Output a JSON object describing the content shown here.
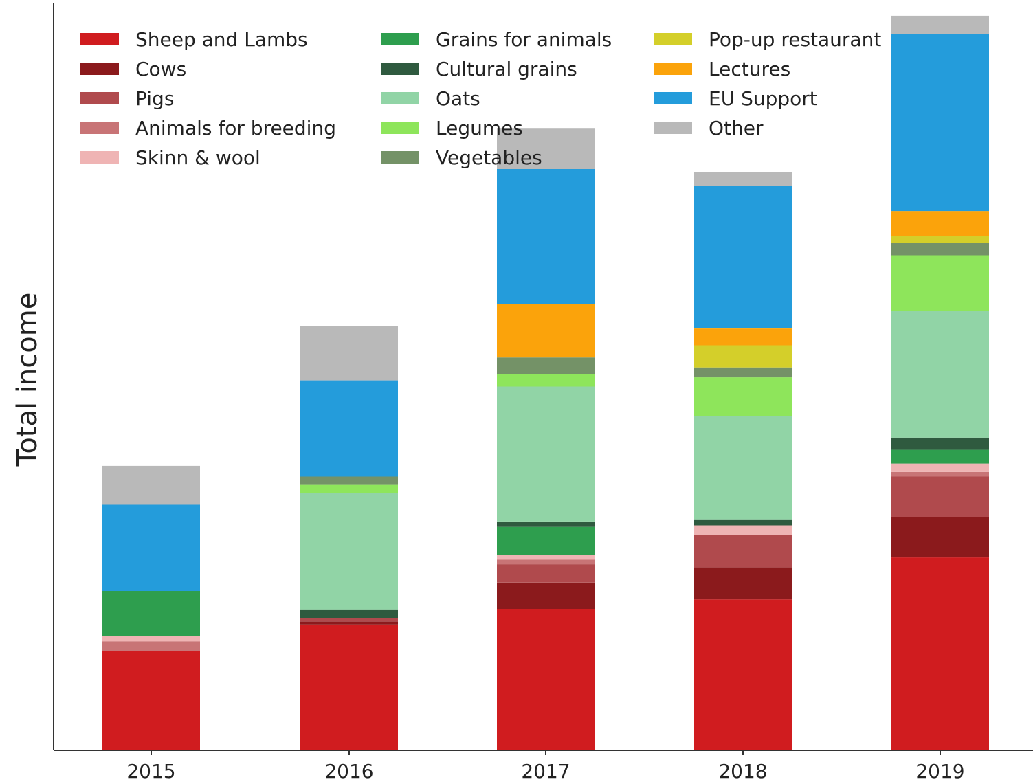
{
  "chart_data": {
    "type": "bar",
    "stacked": true,
    "title": "",
    "xlabel": "",
    "ylabel": "Total income",
    "y_ticks_shown": false,
    "grid": false,
    "legend_placement": "top-left",
    "categories": [
      "2015",
      "2016",
      "2017",
      "2018",
      "2019"
    ],
    "series": [
      {
        "name": "Sheep and Lambs",
        "color": "#d01c1f",
        "values": [
          130,
          165,
          185,
          198,
          253
        ]
      },
      {
        "name": "Cows",
        "color": "#8b1a1c",
        "values": [
          0,
          4,
          35,
          42,
          53
        ]
      },
      {
        "name": "Pigs",
        "color": "#b04a4d",
        "values": [
          0,
          4,
          24,
          42,
          53
        ]
      },
      {
        "name": "Animals for breeding",
        "color": "#c87476",
        "values": [
          13,
          0,
          6,
          0,
          6
        ]
      },
      {
        "name": "Skinn & wool",
        "color": "#efb4b4",
        "values": [
          7,
          0,
          6,
          13,
          11
        ]
      },
      {
        "name": "Grains for animals",
        "color": "#2e9e4e",
        "values": [
          59,
          0,
          37,
          0,
          18
        ]
      },
      {
        "name": "Cultural grains",
        "color": "#2f5a3f",
        "values": [
          0,
          11,
          7,
          7,
          16
        ]
      },
      {
        "name": "Oats",
        "color": "#91d4a6",
        "values": [
          0,
          153,
          177,
          136,
          166
        ]
      },
      {
        "name": "Legumes",
        "color": "#8ee55b",
        "values": [
          0,
          11,
          16,
          51,
          73
        ]
      },
      {
        "name": "Vegetables",
        "color": "#749267",
        "values": [
          0,
          11,
          22,
          13,
          16
        ]
      },
      {
        "name": "Pop-up restaurant",
        "color": "#d4cf2a",
        "values": [
          0,
          0,
          0,
          29,
          9
        ]
      },
      {
        "name": "Lectures",
        "color": "#fba30b",
        "values": [
          0,
          0,
          70,
          22,
          33
        ]
      },
      {
        "name": "EU Support",
        "color": "#249cdb",
        "values": [
          113,
          126,
          177,
          187,
          232
        ]
      },
      {
        "name": "Other",
        "color": "#b9b9b9",
        "values": [
          51,
          71,
          53,
          18,
          24
        ]
      }
    ],
    "ylim": [
      0,
      980
    ]
  }
}
